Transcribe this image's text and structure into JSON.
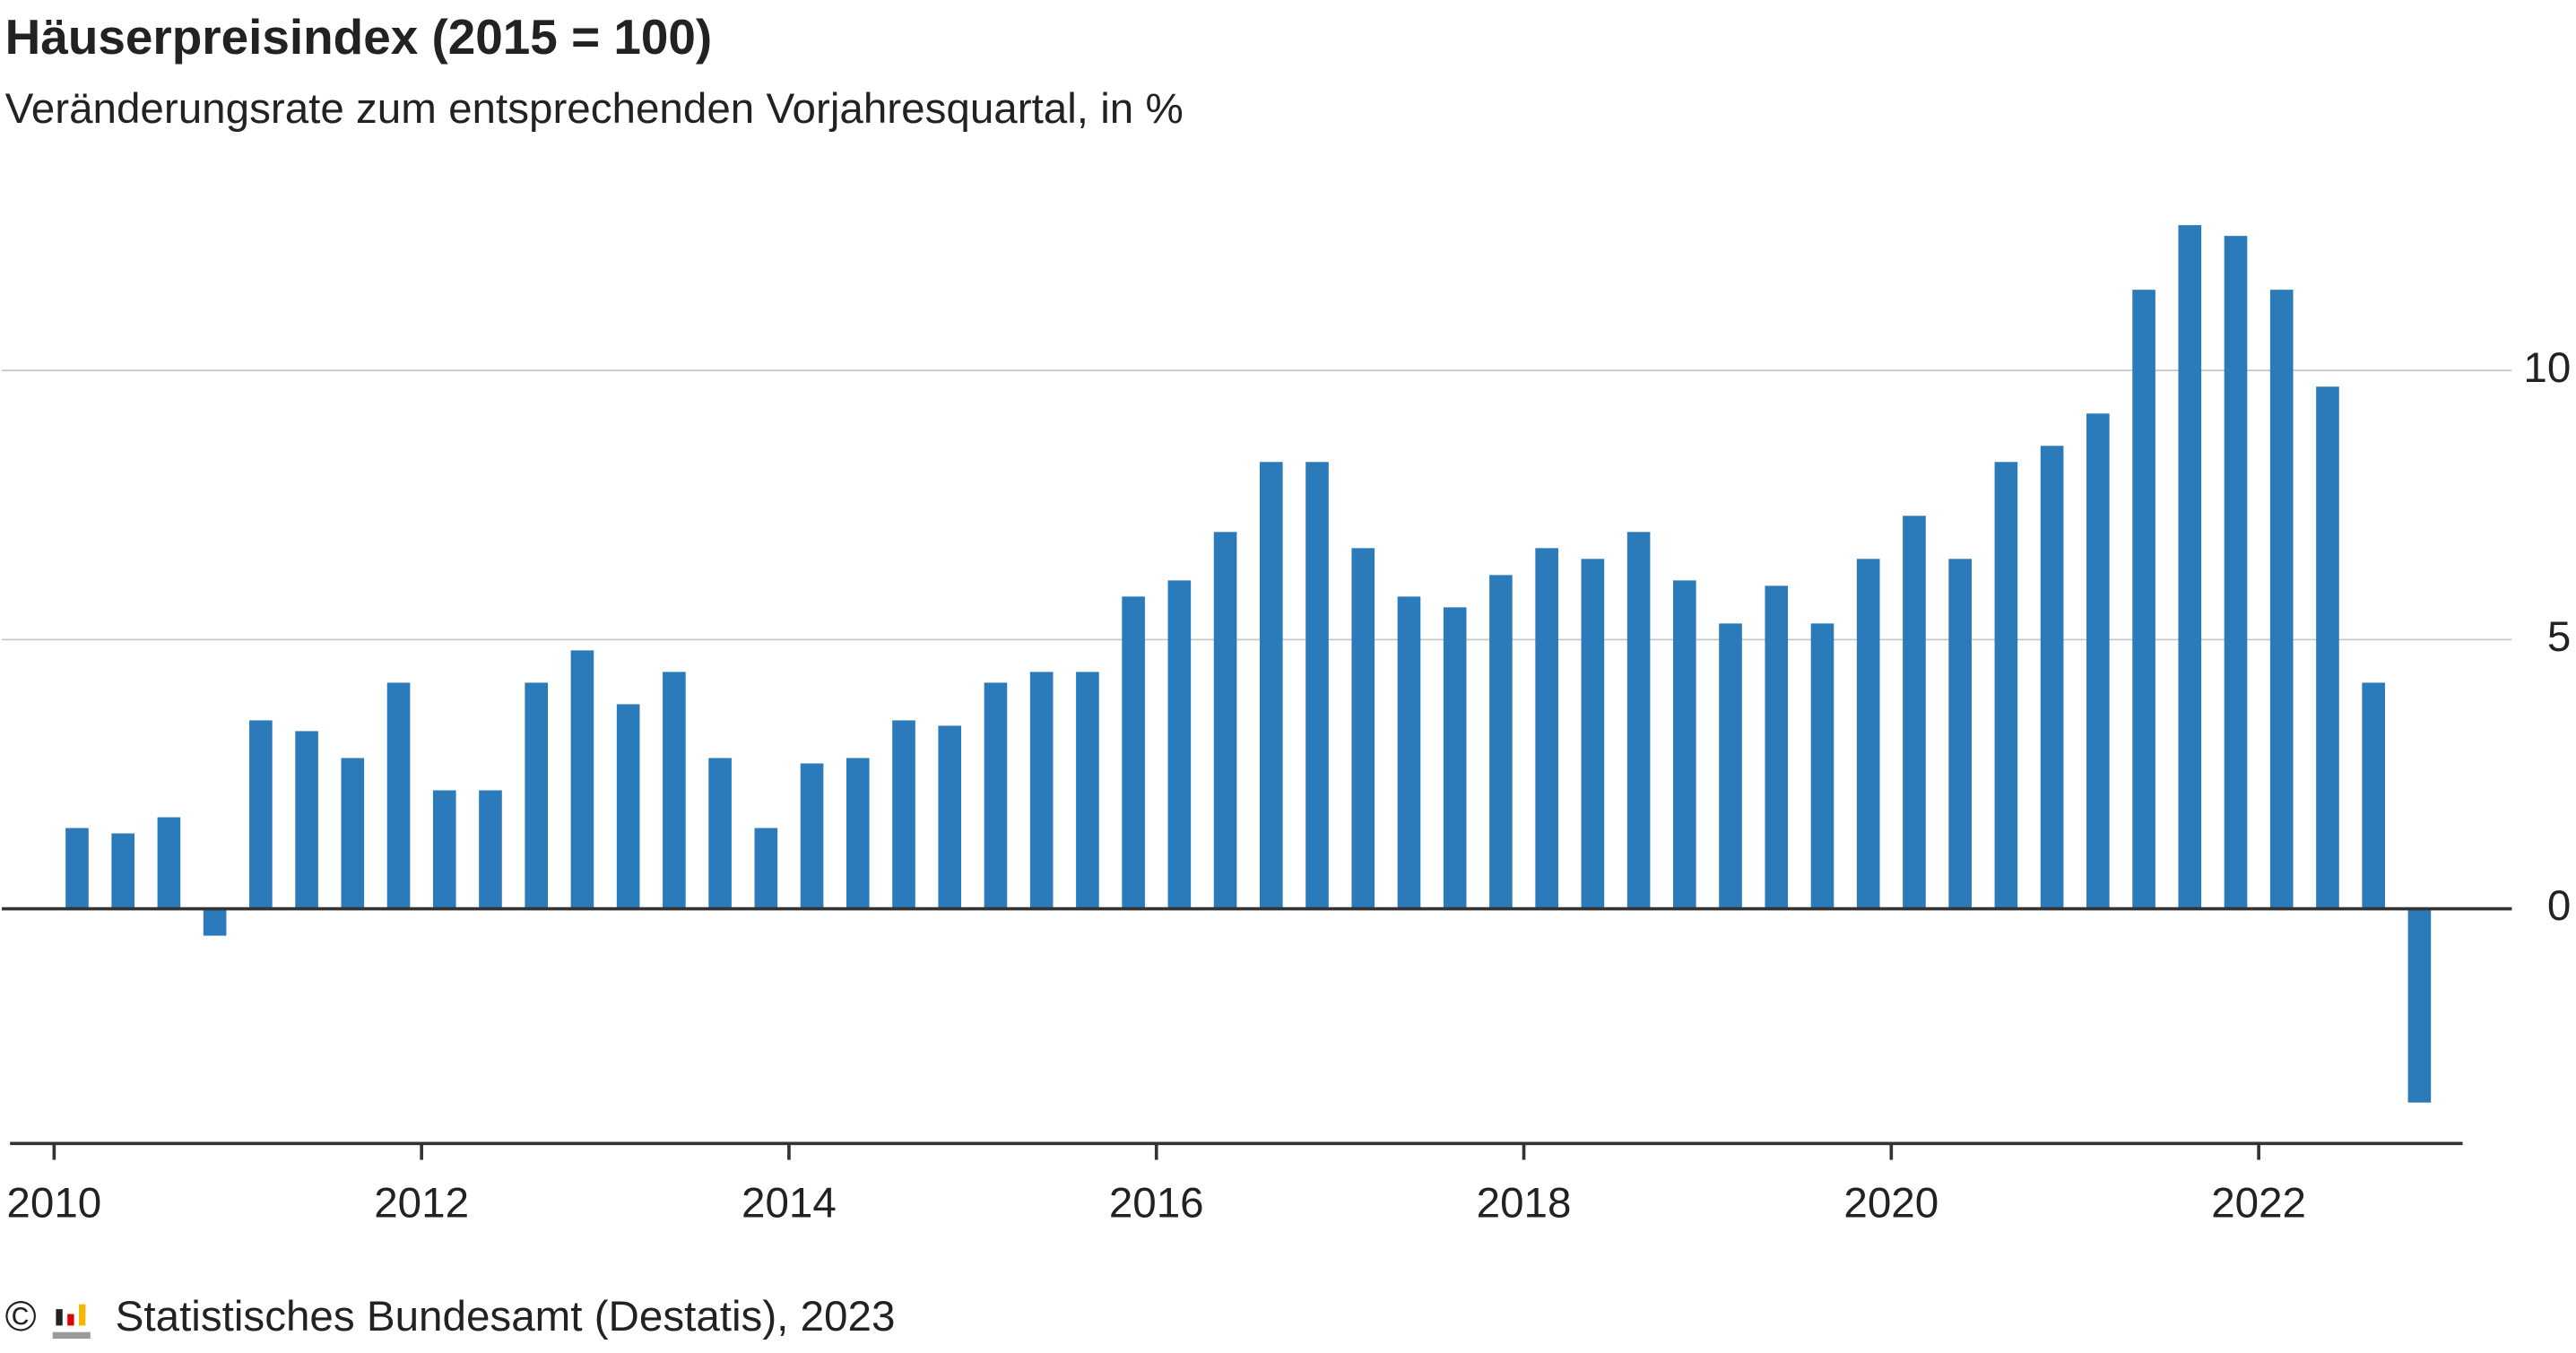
{
  "chart_data": {
    "type": "bar",
    "title": "Häuserpreisindex (2015 = 100)",
    "subtitle": "Veränderungsrate zum entsprechenden Vorjahresquartal, in %",
    "source": "© Statistisches Bundesamt (Destatis), 2023",
    "color": "#2b7bba",
    "x": [
      2010.125,
      2010.375,
      2010.625,
      2010.875,
      2011.125,
      2011.375,
      2011.625,
      2011.875,
      2012.125,
      2012.375,
      2012.625,
      2012.875,
      2013.125,
      2013.375,
      2013.625,
      2013.875,
      2014.125,
      2014.375,
      2014.625,
      2014.875,
      2015.125,
      2015.375,
      2015.625,
      2015.875,
      2016.125,
      2016.375,
      2016.625,
      2016.875,
      2017.125,
      2017.375,
      2017.625,
      2017.875,
      2018.125,
      2018.375,
      2018.625,
      2018.875,
      2019.125,
      2019.375,
      2019.625,
      2019.875,
      2020.125,
      2020.375,
      2020.625,
      2020.875,
      2021.125,
      2021.375,
      2021.625,
      2021.875,
      2022.125,
      2022.375,
      2022.625,
      2022.875
    ],
    "values": [
      1.5,
      1.4,
      1.7,
      -0.5,
      3.5,
      3.3,
      2.8,
      4.2,
      2.2,
      2.2,
      4.2,
      4.8,
      3.8,
      4.4,
      2.8,
      1.5,
      2.7,
      2.8,
      3.5,
      3.4,
      4.2,
      4.4,
      4.4,
      5.8,
      6.1,
      7.0,
      8.3,
      8.3,
      6.7,
      5.8,
      5.6,
      6.2,
      6.7,
      6.5,
      7.0,
      6.1,
      5.3,
      6.0,
      5.3,
      6.5,
      7.3,
      6.5,
      8.3,
      8.6,
      9.2,
      11.5,
      12.7,
      12.5,
      11.5,
      9.7,
      4.2,
      -3.6
    ],
    "xlim": [
      2009.76,
      2023.11
    ],
    "xticks": [
      2010,
      2012,
      2014,
      2016,
      2018,
      2020,
      2022
    ],
    "ylim": [
      -4.36,
      13.5
    ],
    "yticks": [
      0,
      5,
      10
    ],
    "grid": true
  }
}
